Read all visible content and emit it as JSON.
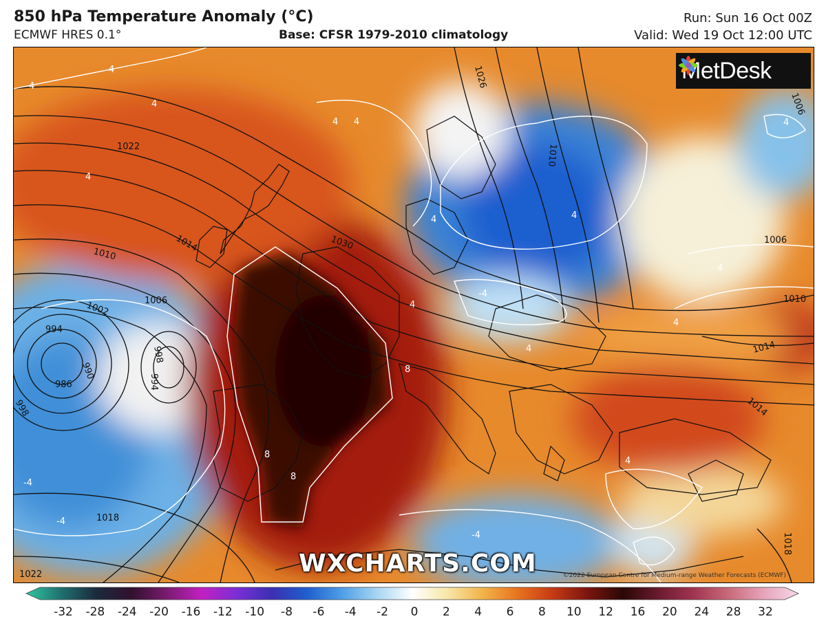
{
  "header": {
    "title": "850 hPa Temperature Anomaly (°C)",
    "model": "ECMWF HRES 0.1°",
    "base": "Base: CFSR 1979-2010 climatology",
    "run": "Run: Sun 16 Oct 00Z",
    "valid": "Valid: Wed 19 Oct 12:00 UTC"
  },
  "branding": {
    "logo_text": "MetDesk",
    "watermark": "WXCHARTS.COM",
    "copyright": "©2022 European Centre for Medium-range Weather Forecasts (ECMWF)"
  },
  "isobar_labels": [
    "1022",
    "1014",
    "1010",
    "1006",
    "1002",
    "994",
    "990",
    "986",
    "998",
    "998",
    "994",
    "1030",
    "1026",
    "1018",
    "1010",
    "1006",
    "1010",
    "1014",
    "1014",
    "1018",
    "1022",
    "1006"
  ],
  "anomaly_labels": [
    "4",
    "4",
    "4",
    "4",
    "4",
    "4",
    "4",
    "4",
    "4",
    "8",
    "8",
    "8",
    "-4",
    "-4",
    "-4",
    "-4",
    "4",
    "4",
    "4",
    "4",
    "4"
  ],
  "colorbar": {
    "ticks": [
      "-32",
      "-28",
      "-24",
      "-20",
      "-16",
      "-12",
      "-10",
      "-8",
      "-6",
      "-4",
      "-2",
      "0",
      "2",
      "4",
      "6",
      "8",
      "10",
      "12",
      "16",
      "20",
      "24",
      "28",
      "32"
    ],
    "colors": [
      "#2fc7a0",
      "#1f7070",
      "#1b2a3c",
      "#31112f",
      "#7a1b6e",
      "#c21fc2",
      "#7a2fd6",
      "#3b2fb2",
      "#1f5fcf",
      "#4f9fe6",
      "#a8d6f2",
      "#ffffff",
      "#f7e7a8",
      "#f2b34a",
      "#e8731e",
      "#c53a14",
      "#7a150f",
      "#2a0805",
      "#6a1a2e",
      "#a13450",
      "#c86a7a",
      "#e7a3ba",
      "#f7d8e8"
    ],
    "unit": "°C"
  }
}
